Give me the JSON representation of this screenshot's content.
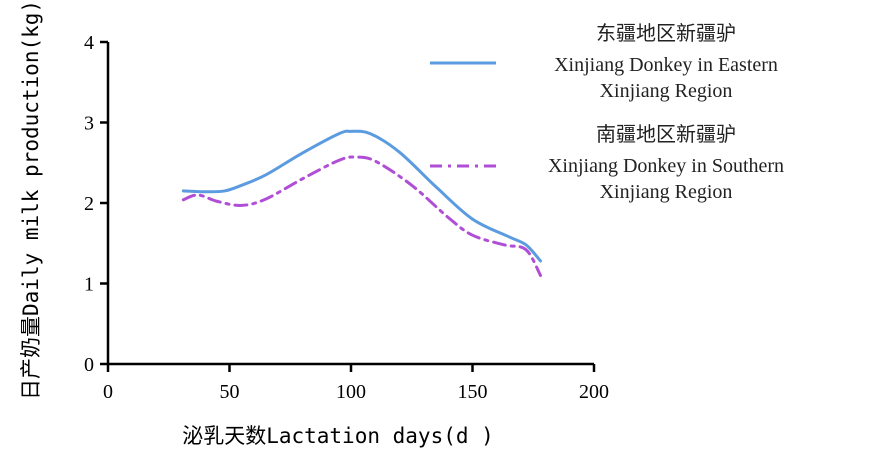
{
  "chart_data": {
    "type": "line",
    "xlabel": "泌乳天数Lactation days(d )",
    "ylabel": "日产奶量Daily milk production(kg)",
    "xlim": [
      0,
      200
    ],
    "ylim": [
      0,
      4
    ],
    "xticks": [
      "0",
      "50",
      "100",
      "150",
      "200"
    ],
    "yticks": [
      "0",
      "1",
      "2",
      "3",
      "4"
    ],
    "grid": false,
    "legend_position": "top-right",
    "series": [
      {
        "name_lines": [
          "东疆地区新疆驴",
          "Xinjiang Donkey in Eastern",
          "Xinjiang Region"
        ],
        "color": "#5b9bdf",
        "style": "solid",
        "x": [
          31,
          40,
          48,
          55,
          65,
          80,
          95,
          100,
          108,
          120,
          135,
          150,
          165,
          172,
          178
        ],
        "y": [
          2.15,
          2.14,
          2.15,
          2.22,
          2.35,
          2.62,
          2.86,
          2.89,
          2.86,
          2.63,
          2.2,
          1.8,
          1.58,
          1.48,
          1.28
        ]
      },
      {
        "name_lines": [
          "南疆地区新疆驴",
          "Xinjiang Donkey in Southern",
          "Xinjiang Region"
        ],
        "color": "#b04ed6",
        "style": "dashdot",
        "x": [
          31,
          37,
          45,
          55,
          65,
          80,
          95,
          102,
          110,
          125,
          140,
          150,
          163,
          172,
          178
        ],
        "y": [
          2.04,
          2.1,
          2.02,
          1.97,
          2.05,
          2.3,
          2.53,
          2.57,
          2.52,
          2.22,
          1.82,
          1.6,
          1.48,
          1.42,
          1.1
        ]
      }
    ]
  }
}
